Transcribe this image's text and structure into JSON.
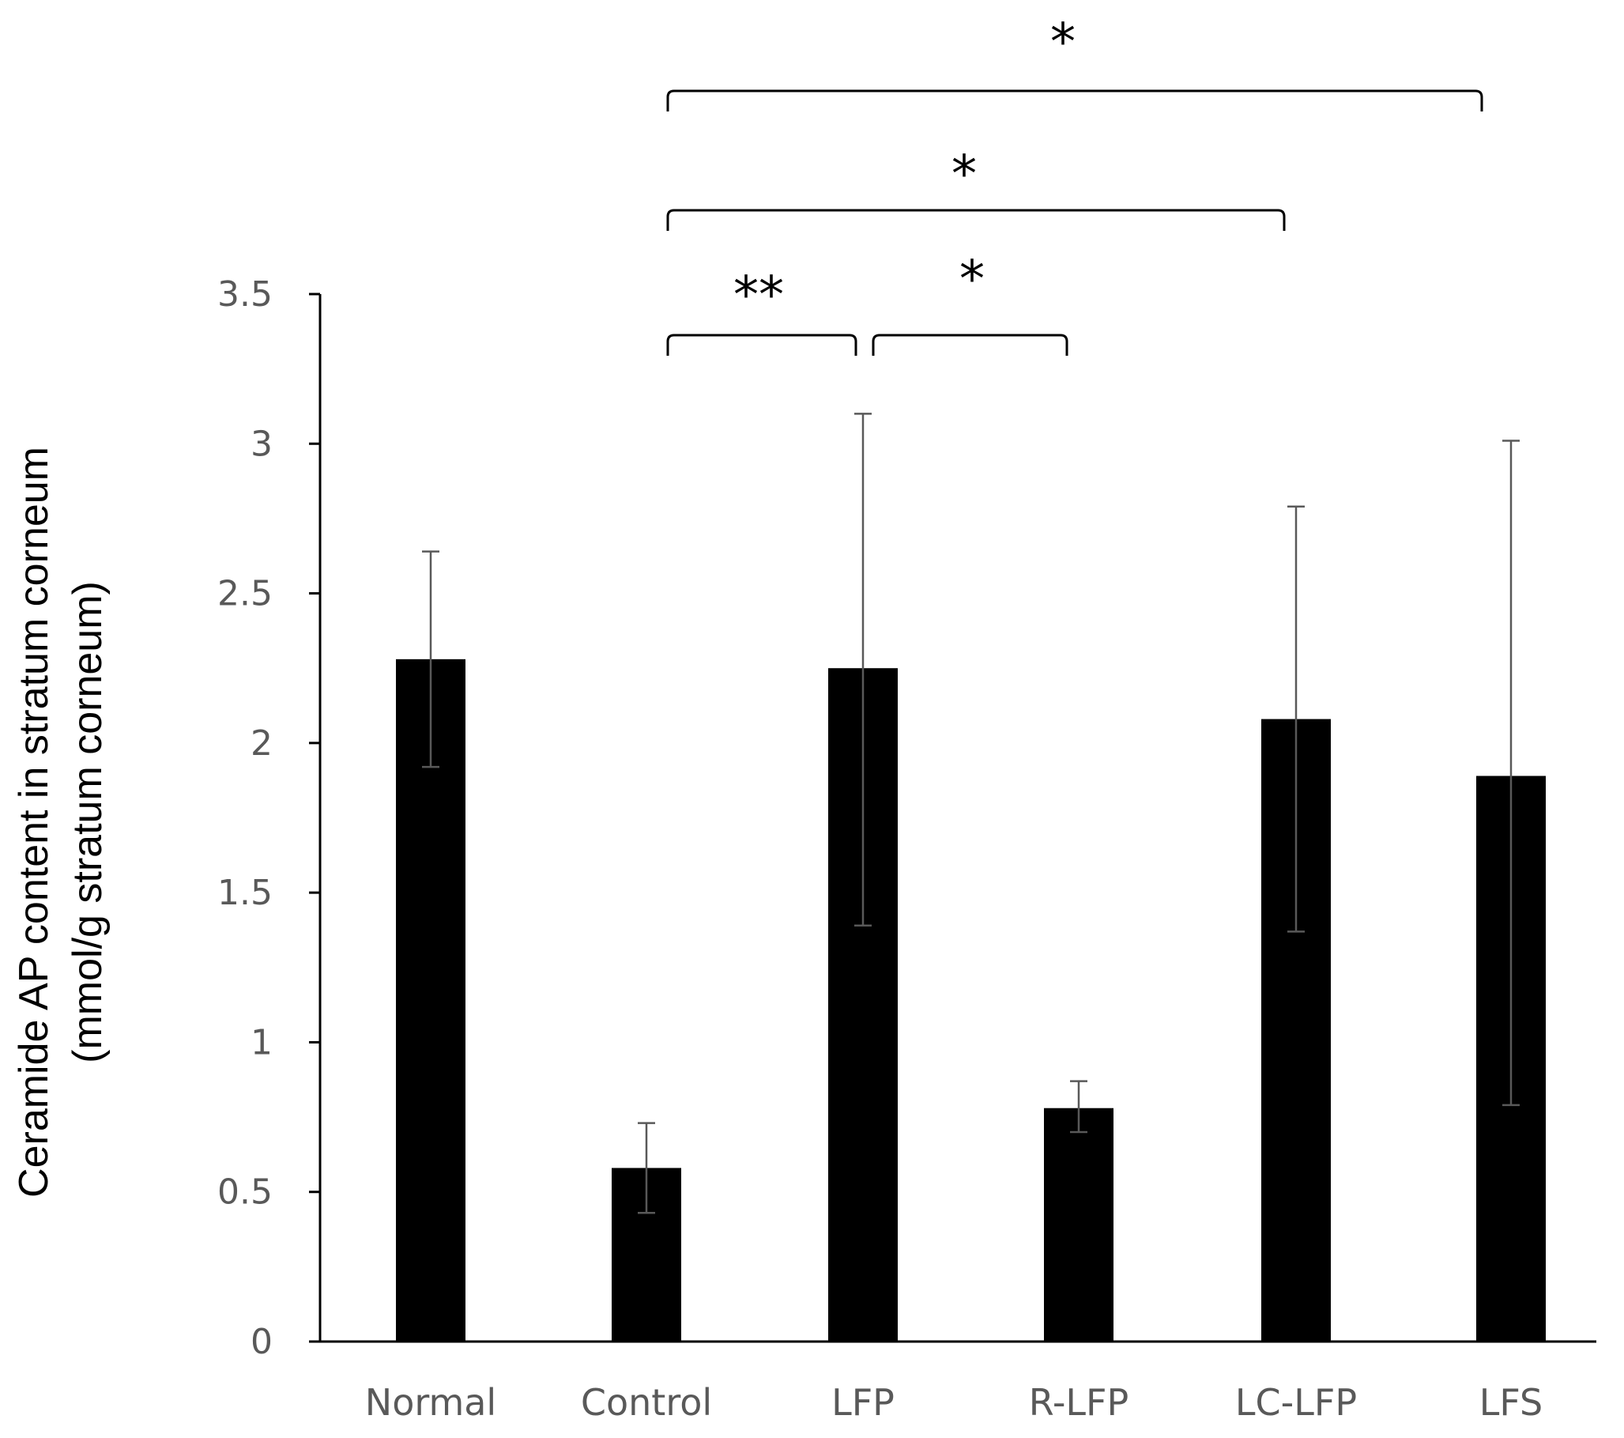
{
  "chart_data": {
    "type": "bar",
    "categories": [
      "Normal",
      "Control",
      "LFP",
      "R-LFP",
      "LC-LFP",
      "LFS"
    ],
    "series": [
      {
        "values": [
          2.28,
          0.58,
          2.25,
          0.78,
          2.08,
          1.89
        ],
        "error_low": [
          1.92,
          0.43,
          1.39,
          0.7,
          1.37,
          0.79
        ],
        "error_high": [
          2.64,
          0.73,
          3.1,
          0.87,
          2.79,
          3.01
        ],
        "color": "#000000"
      }
    ],
    "ylabel_line1": "Ceramide AP content in stratum corneum",
    "ylabel_line2": "(mmol/g stratum corneum)",
    "xlabel": "",
    "ylim": [
      0,
      3.5
    ],
    "yticks": [
      0,
      0.5,
      1,
      1.5,
      2,
      2.5,
      3,
      3.5
    ],
    "ytick_labels": [
      "0",
      "0.5",
      "1",
      "1.5",
      "2",
      "2.5",
      "3",
      "3.5"
    ],
    "grid": false,
    "legend": "none",
    "significance": [
      {
        "from": "Control",
        "to": "LFP",
        "label": "**"
      },
      {
        "from": "LFP",
        "to": "R-LFP",
        "label": "*"
      },
      {
        "from": "Control",
        "to": "LC-LFP",
        "label": "*"
      },
      {
        "from": "Control",
        "to": "LFS",
        "label": "*"
      }
    ]
  }
}
